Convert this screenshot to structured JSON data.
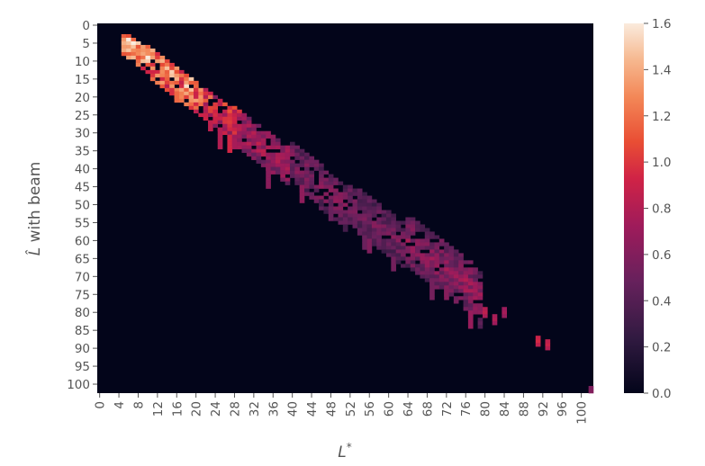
{
  "chart_data": {
    "type": "heatmap",
    "title": "",
    "xlabel": "L^*",
    "ylabel": "Ĺ with beam",
    "x_range": [
      0,
      102
    ],
    "y_range": [
      0,
      102
    ],
    "x_tick_labels": [
      "0",
      "4",
      "8",
      "12",
      "16",
      "20",
      "24",
      "28",
      "32",
      "36",
      "40",
      "44",
      "48",
      "52",
      "56",
      "60",
      "64",
      "68",
      "72",
      "76",
      "80",
      "84",
      "88",
      "92",
      "96",
      "100"
    ],
    "y_tick_labels": [
      "0",
      "5",
      "10",
      "15",
      "20",
      "25",
      "30",
      "35",
      "40",
      "45",
      "50",
      "55",
      "60",
      "65",
      "70",
      "75",
      "80",
      "85",
      "90",
      "95",
      "100"
    ],
    "colorbar": {
      "min": 0.0,
      "max": 1.6,
      "tick_labels": [
        "0.0",
        "0.2",
        "0.4",
        "0.6",
        "0.8",
        "1.0",
        "1.2",
        "1.4",
        "1.6"
      ],
      "colormap": "rocket"
    },
    "background_value": 0.0,
    "band": [
      {
        "x": [
          5,
          12
        ],
        "y": [
          5,
          12
        ],
        "value": 1.3
      },
      {
        "x": [
          12,
          22
        ],
        "y": [
          12,
          22
        ],
        "value": 1.2
      },
      {
        "x": [
          22,
          30
        ],
        "y": [
          22,
          30
        ],
        "value": 0.9
      },
      {
        "x": [
          30,
          40
        ],
        "y": [
          30,
          40
        ],
        "value": 0.75
      },
      {
        "x": [
          40,
          52
        ],
        "y": [
          38,
          52
        ],
        "value": 0.6
      },
      {
        "x": [
          52,
          64
        ],
        "y": [
          50,
          62
        ],
        "value": 0.55
      },
      {
        "x": [
          64,
          76
        ],
        "y": [
          60,
          72
        ],
        "value": 0.65
      },
      {
        "x": [
          76,
          80
        ],
        "y": [
          72,
          78
        ],
        "value": 0.7
      }
    ],
    "isolated_cells": [
      {
        "x": 80,
        "y": 80,
        "value": 0.85
      },
      {
        "x": 82,
        "y": 82,
        "value": 0.8
      },
      {
        "x": 84,
        "y": 80,
        "value": 0.75
      },
      {
        "x": 91,
        "y": 88,
        "value": 0.95
      },
      {
        "x": 93,
        "y": 89,
        "value": 0.9
      },
      {
        "x": 102,
        "y": 102,
        "value": 0.6
      }
    ]
  }
}
